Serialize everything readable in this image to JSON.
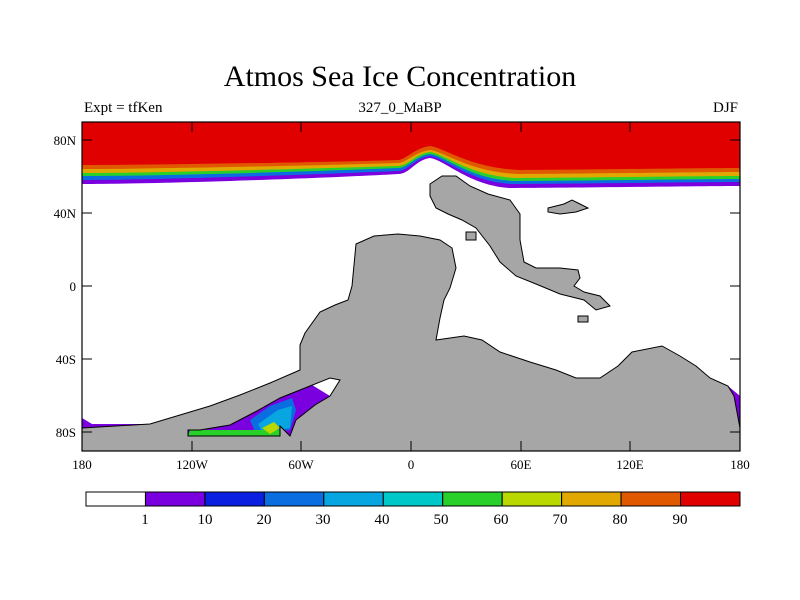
{
  "header": {
    "title": "Atmos Sea Ice Concentration",
    "expt": "Expt = tfKen",
    "case": "327_0_MaBP",
    "season": "DJF"
  },
  "map": {
    "lat_ticks": [
      "80N",
      "40N",
      "0",
      "40S",
      "80S"
    ],
    "lon_ticks": [
      "180",
      "120W",
      "60W",
      "0",
      "60E",
      "120E",
      "180"
    ],
    "land_color": "#a6a6a6",
    "ocean_color": "#ffffff"
  },
  "colorbar": {
    "labels": [
      "1",
      "10",
      "20",
      "30",
      "40",
      "50",
      "60",
      "70",
      "80",
      "90"
    ],
    "colors": [
      "#ffffff",
      "#7a00e0",
      "#0a1fe0",
      "#0a6ee0",
      "#08a6e0",
      "#00c8c8",
      "#2ad02a",
      "#b8d800",
      "#e0a800",
      "#e05800",
      "#e00000"
    ]
  }
}
